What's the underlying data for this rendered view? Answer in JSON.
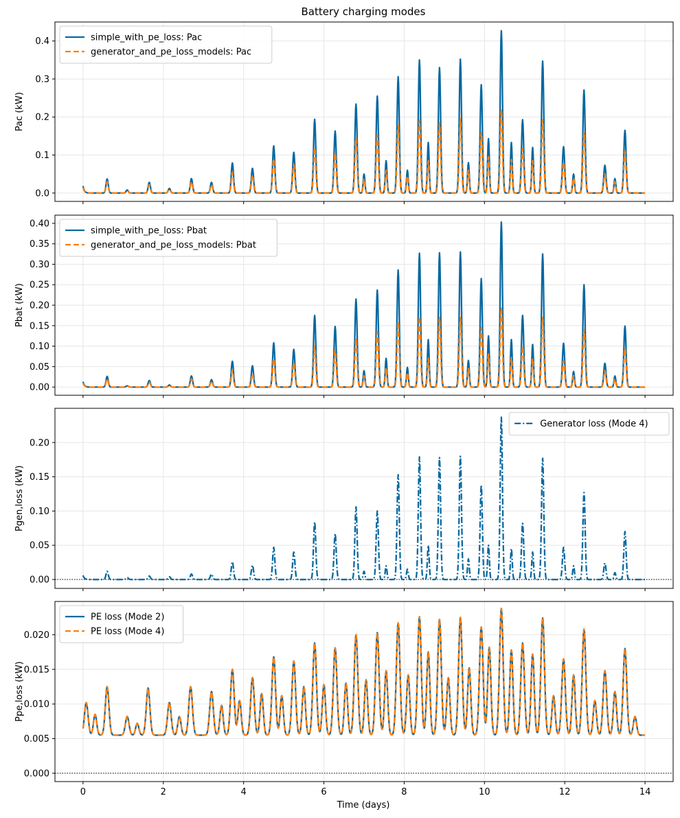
{
  "figure": {
    "title": "Battery charging modes",
    "xlabel": "Time (days)",
    "colors": {
      "blue": "#0868a0",
      "orange": "#ff7f0e",
      "grid": "#e6e6e6",
      "frame": "#000000"
    }
  },
  "chart_data": [
    {
      "type": "line",
      "title": "Battery charging modes",
      "ylabel": "Pac (kW)",
      "xlabel": "",
      "xlim": [
        -0.7,
        14.7
      ],
      "ylim": [
        -0.022,
        0.45
      ],
      "xticks": [
        0,
        2,
        4,
        6,
        8,
        10,
        12,
        14
      ],
      "yticks": [
        0.0,
        0.1,
        0.2,
        0.3,
        0.4
      ],
      "ytick_labels": [
        "0.0",
        "0.1",
        "0.2",
        "0.3",
        "0.4"
      ],
      "show_xtick_labels": false,
      "grid": true,
      "legend_position": "top-left",
      "series": [
        {
          "name": "simple_with_pe_loss: Pac",
          "style": "solid",
          "color": "#0868a0"
        },
        {
          "name": "generator_and_pe_loss_models: Pac",
          "style": "dashed",
          "color": "#ff7f0e"
        }
      ],
      "daily_peaks": [
        {
          "t": 0.6,
          "a": 0.037,
          "b": 0.03
        },
        {
          "t": 1.1,
          "a": 0.008,
          "b": 0.006
        },
        {
          "t": 1.65,
          "a": 0.028,
          "b": 0.022
        },
        {
          "t": 2.15,
          "a": 0.012,
          "b": 0.01
        },
        {
          "t": 2.7,
          "a": 0.038,
          "b": 0.03
        },
        {
          "t": 3.2,
          "a": 0.028,
          "b": 0.022
        },
        {
          "t": 3.72,
          "a": 0.079,
          "b": 0.055
        },
        {
          "t": 4.22,
          "a": 0.065,
          "b": 0.047
        },
        {
          "t": 4.75,
          "a": 0.124,
          "b": 0.09
        },
        {
          "t": 5.25,
          "a": 0.107,
          "b": 0.075
        },
        {
          "t": 5.77,
          "a": 0.194,
          "b": 0.12
        },
        {
          "t": 6.28,
          "a": 0.163,
          "b": 0.105
        },
        {
          "t": 6.8,
          "a": 0.234,
          "b": 0.145
        },
        {
          "t": 7.33,
          "a": 0.255,
          "b": 0.153
        },
        {
          "t": 7.85,
          "a": 0.306,
          "b": 0.178
        },
        {
          "t": 8.38,
          "a": 0.35,
          "b": 0.192
        },
        {
          "t": 8.88,
          "a": 0.33,
          "b": 0.185
        },
        {
          "t": 9.4,
          "a": 0.352,
          "b": 0.195
        },
        {
          "t": 9.92,
          "a": 0.285,
          "b": 0.16
        },
        {
          "t": 10.42,
          "a": 0.427,
          "b": 0.22
        },
        {
          "t": 10.95,
          "a": 0.193,
          "b": 0.118
        },
        {
          "t": 11.45,
          "a": 0.347,
          "b": 0.193
        },
        {
          "t": 11.97,
          "a": 0.122,
          "b": 0.082
        },
        {
          "t": 12.48,
          "a": 0.271,
          "b": 0.16
        },
        {
          "t": 13.0,
          "a": 0.073,
          "b": 0.05
        },
        {
          "t": 13.5,
          "a": 0.165,
          "b": 0.11
        }
      ],
      "secondary_peaks": [
        {
          "t": 8.6,
          "a": 0.133,
          "b": 0.085
        },
        {
          "t": 9.6,
          "a": 0.08,
          "b": 0.06
        },
        {
          "t": 10.1,
          "a": 0.143,
          "b": 0.095
        },
        {
          "t": 10.67,
          "a": 0.133,
          "b": 0.088
        },
        {
          "t": 11.2,
          "a": 0.12,
          "b": 0.085
        },
        {
          "t": 12.22,
          "a": 0.05,
          "b": 0.04
        },
        {
          "t": 13.25,
          "a": 0.038,
          "b": 0.03
        },
        {
          "t": 7.55,
          "a": 0.085,
          "b": 0.06
        },
        {
          "t": 8.08,
          "a": 0.06,
          "b": 0.045
        },
        {
          "t": 7.0,
          "a": 0.05,
          "b": 0.038
        }
      ]
    },
    {
      "type": "line",
      "ylabel": "Pbat (kW)",
      "xlabel": "",
      "xlim": [
        -0.7,
        14.7
      ],
      "ylim": [
        -0.02,
        0.42
      ],
      "xticks": [
        0,
        2,
        4,
        6,
        8,
        10,
        12,
        14
      ],
      "yticks": [
        0.0,
        0.05,
        0.1,
        0.15,
        0.2,
        0.25,
        0.3,
        0.35,
        0.4
      ],
      "ytick_labels": [
        "0.00",
        "0.05",
        "0.10",
        "0.15",
        "0.20",
        "0.25",
        "0.30",
        "0.35",
        "0.40"
      ],
      "show_xtick_labels": false,
      "grid": true,
      "legend_position": "top-left",
      "series": [
        {
          "name": "simple_with_pe_loss: Pbat",
          "style": "solid",
          "color": "#0868a0"
        },
        {
          "name": "generator_and_pe_loss_models: Pbat",
          "style": "dashed",
          "color": "#ff7f0e"
        }
      ],
      "daily_peaks": [
        {
          "t": 0.6,
          "a": 0.026,
          "b": 0.02
        },
        {
          "t": 1.1,
          "a": 0.003,
          "b": 0.002
        },
        {
          "t": 1.65,
          "a": 0.016,
          "b": 0.012
        },
        {
          "t": 2.15,
          "a": 0.005,
          "b": 0.004
        },
        {
          "t": 2.7,
          "a": 0.027,
          "b": 0.02
        },
        {
          "t": 3.2,
          "a": 0.018,
          "b": 0.014
        },
        {
          "t": 3.72,
          "a": 0.063,
          "b": 0.042
        },
        {
          "t": 4.22,
          "a": 0.052,
          "b": 0.032
        },
        {
          "t": 4.75,
          "a": 0.108,
          "b": 0.07
        },
        {
          "t": 5.25,
          "a": 0.092,
          "b": 0.06
        },
        {
          "t": 5.77,
          "a": 0.175,
          "b": 0.1
        },
        {
          "t": 6.28,
          "a": 0.148,
          "b": 0.09
        },
        {
          "t": 6.8,
          "a": 0.215,
          "b": 0.12
        },
        {
          "t": 7.33,
          "a": 0.237,
          "b": 0.135
        },
        {
          "t": 7.85,
          "a": 0.286,
          "b": 0.16
        },
        {
          "t": 8.38,
          "a": 0.327,
          "b": 0.172
        },
        {
          "t": 8.88,
          "a": 0.328,
          "b": 0.17
        },
        {
          "t": 9.4,
          "a": 0.33,
          "b": 0.17
        },
        {
          "t": 9.92,
          "a": 0.265,
          "b": 0.145
        },
        {
          "t": 10.42,
          "a": 0.403,
          "b": 0.195
        },
        {
          "t": 10.95,
          "a": 0.175,
          "b": 0.1
        },
        {
          "t": 11.45,
          "a": 0.325,
          "b": 0.17
        },
        {
          "t": 11.97,
          "a": 0.107,
          "b": 0.065
        },
        {
          "t": 12.48,
          "a": 0.25,
          "b": 0.14
        },
        {
          "t": 13.0,
          "a": 0.058,
          "b": 0.04
        },
        {
          "t": 13.5,
          "a": 0.149,
          "b": 0.095
        }
      ],
      "secondary_peaks": [
        {
          "t": 8.6,
          "a": 0.116,
          "b": 0.07
        },
        {
          "t": 9.6,
          "a": 0.065,
          "b": 0.045
        },
        {
          "t": 10.1,
          "a": 0.125,
          "b": 0.08
        },
        {
          "t": 10.67,
          "a": 0.116,
          "b": 0.072
        },
        {
          "t": 11.2,
          "a": 0.104,
          "b": 0.07
        },
        {
          "t": 12.22,
          "a": 0.038,
          "b": 0.028
        },
        {
          "t": 13.25,
          "a": 0.027,
          "b": 0.02
        },
        {
          "t": 7.55,
          "a": 0.07,
          "b": 0.048
        },
        {
          "t": 8.08,
          "a": 0.048,
          "b": 0.035
        },
        {
          "t": 7.0,
          "a": 0.04,
          "b": 0.028
        }
      ]
    },
    {
      "type": "line",
      "ylabel": "Pgen,loss (kW)",
      "xlabel": "",
      "xlim": [
        -0.7,
        14.7
      ],
      "ylim": [
        -0.013,
        0.25
      ],
      "xticks": [
        0,
        2,
        4,
        6,
        8,
        10,
        12,
        14
      ],
      "yticks": [
        0.0,
        0.05,
        0.1,
        0.15,
        0.2
      ],
      "ytick_labels": [
        "0.00",
        "0.05",
        "0.10",
        "0.15",
        "0.20"
      ],
      "show_xtick_labels": false,
      "grid": true,
      "zero_line": true,
      "legend_position": "top-right",
      "series": [
        {
          "name": "Generator loss (Mode 4)",
          "style": "dashdot",
          "color": "#0868a0"
        }
      ],
      "daily_peaks": [
        {
          "t": 0.6,
          "a": 0.012
        },
        {
          "t": 1.1,
          "a": 0.003
        },
        {
          "t": 1.65,
          "a": 0.005
        },
        {
          "t": 2.15,
          "a": 0.004
        },
        {
          "t": 2.7,
          "a": 0.008
        },
        {
          "t": 3.2,
          "a": 0.008
        },
        {
          "t": 3.72,
          "a": 0.026
        },
        {
          "t": 4.22,
          "a": 0.021
        },
        {
          "t": 4.75,
          "a": 0.047
        },
        {
          "t": 5.25,
          "a": 0.04
        },
        {
          "t": 5.77,
          "a": 0.084
        },
        {
          "t": 6.28,
          "a": 0.067
        },
        {
          "t": 6.8,
          "a": 0.106
        },
        {
          "t": 7.33,
          "a": 0.1
        },
        {
          "t": 7.85,
          "a": 0.153
        },
        {
          "t": 8.38,
          "a": 0.179
        },
        {
          "t": 8.88,
          "a": 0.178
        },
        {
          "t": 9.4,
          "a": 0.18
        },
        {
          "t": 9.92,
          "a": 0.138
        },
        {
          "t": 10.42,
          "a": 0.237
        },
        {
          "t": 10.95,
          "a": 0.082
        },
        {
          "t": 11.45,
          "a": 0.177
        },
        {
          "t": 11.97,
          "a": 0.047
        },
        {
          "t": 12.48,
          "a": 0.127
        },
        {
          "t": 13.0,
          "a": 0.024
        },
        {
          "t": 13.5,
          "a": 0.07
        }
      ],
      "secondary_peaks": [
        {
          "t": 8.6,
          "a": 0.05
        },
        {
          "t": 9.6,
          "a": 0.03
        },
        {
          "t": 10.1,
          "a": 0.05
        },
        {
          "t": 10.67,
          "a": 0.045
        },
        {
          "t": 11.2,
          "a": 0.04
        },
        {
          "t": 12.22,
          "a": 0.02
        },
        {
          "t": 13.25,
          "a": 0.01
        },
        {
          "t": 7.55,
          "a": 0.02
        },
        {
          "t": 8.08,
          "a": 0.015
        },
        {
          "t": 7.0,
          "a": 0.012
        }
      ]
    },
    {
      "type": "line",
      "ylabel": "Ppe,loss (kW)",
      "xlabel": "Time (days)",
      "xlim": [
        -0.7,
        14.7
      ],
      "ylim": [
        -0.0012,
        0.0248
      ],
      "xticks": [
        0,
        2,
        4,
        6,
        8,
        10,
        12,
        14
      ],
      "yticks": [
        0.0,
        0.005,
        0.01,
        0.015,
        0.02
      ],
      "ytick_labels": [
        "0.000",
        "0.005",
        "0.010",
        "0.015",
        "0.020"
      ],
      "xtick_labels": [
        "0",
        "2",
        "4",
        "6",
        "8",
        "10",
        "12",
        "14"
      ],
      "show_xtick_labels": true,
      "grid": true,
      "zero_line": true,
      "legend_position": "top-left",
      "series": [
        {
          "name": "PE loss (Mode 2)",
          "style": "solid",
          "color": "#0868a0"
        },
        {
          "name": "PE loss (Mode 4)",
          "style": "dashed",
          "color": "#ff7f0e"
        }
      ],
      "baseline": 0.0055,
      "daily_peaks": [
        {
          "t": 0.08,
          "a": 0.0102
        },
        {
          "t": 0.6,
          "a": 0.0125
        },
        {
          "t": 1.1,
          "a": 0.0082
        },
        {
          "t": 1.62,
          "a": 0.0123
        },
        {
          "t": 2.15,
          "a": 0.0102
        },
        {
          "t": 2.68,
          "a": 0.0125
        },
        {
          "t": 3.2,
          "a": 0.0118
        },
        {
          "t": 3.72,
          "a": 0.015
        },
        {
          "t": 4.22,
          "a": 0.0138
        },
        {
          "t": 4.75,
          "a": 0.0168
        },
        {
          "t": 5.25,
          "a": 0.0162
        },
        {
          "t": 5.77,
          "a": 0.0188
        },
        {
          "t": 6.28,
          "a": 0.0181
        },
        {
          "t": 6.8,
          "a": 0.02
        },
        {
          "t": 7.33,
          "a": 0.0203
        },
        {
          "t": 7.85,
          "a": 0.0217
        },
        {
          "t": 8.38,
          "a": 0.0226
        },
        {
          "t": 8.88,
          "a": 0.0222
        },
        {
          "t": 9.4,
          "a": 0.0225
        },
        {
          "t": 9.92,
          "a": 0.0211
        },
        {
          "t": 10.42,
          "a": 0.0238
        },
        {
          "t": 10.95,
          "a": 0.0188
        },
        {
          "t": 11.45,
          "a": 0.0224
        },
        {
          "t": 11.97,
          "a": 0.0165
        },
        {
          "t": 12.48,
          "a": 0.0208
        },
        {
          "t": 13.0,
          "a": 0.0148
        },
        {
          "t": 13.5,
          "a": 0.018
        }
      ],
      "secondary_peaks": [
        {
          "t": 0.3,
          "a": 0.0085
        },
        {
          "t": 1.35,
          "a": 0.0072
        },
        {
          "t": 2.4,
          "a": 0.0082
        },
        {
          "t": 3.45,
          "a": 0.0098
        },
        {
          "t": 3.9,
          "a": 0.0105
        },
        {
          "t": 4.45,
          "a": 0.0115
        },
        {
          "t": 4.95,
          "a": 0.0112
        },
        {
          "t": 5.5,
          "a": 0.0125
        },
        {
          "t": 6.0,
          "a": 0.0128
        },
        {
          "t": 6.55,
          "a": 0.013
        },
        {
          "t": 7.05,
          "a": 0.0135
        },
        {
          "t": 7.55,
          "a": 0.0148
        },
        {
          "t": 8.1,
          "a": 0.0142
        },
        {
          "t": 8.6,
          "a": 0.0175
        },
        {
          "t": 9.1,
          "a": 0.0138
        },
        {
          "t": 9.62,
          "a": 0.0152
        },
        {
          "t": 10.12,
          "a": 0.0182
        },
        {
          "t": 10.67,
          "a": 0.0178
        },
        {
          "t": 11.2,
          "a": 0.0172
        },
        {
          "t": 11.72,
          "a": 0.0112
        },
        {
          "t": 12.22,
          "a": 0.0142
        },
        {
          "t": 12.75,
          "a": 0.0105
        },
        {
          "t": 13.25,
          "a": 0.0118
        },
        {
          "t": 13.75,
          "a": 0.0082
        }
      ]
    }
  ]
}
